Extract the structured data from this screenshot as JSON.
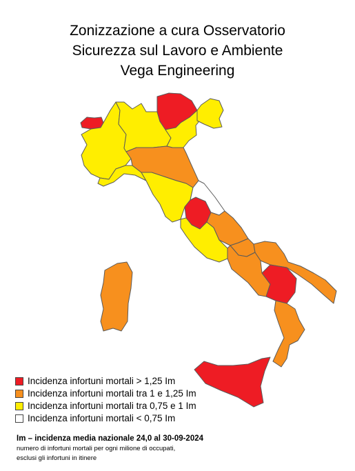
{
  "title": {
    "line1": "Zonizzazione a cura Osservatorio",
    "line2": "Sicurezza sul Lavoro e Ambiente",
    "line3": "Vega Engineering"
  },
  "colors": {
    "red": "#ee1c24",
    "orange": "#f7901e",
    "yellow": "#ffee00",
    "white": "#ffffff"
  },
  "regions": [
    {
      "name": "Valle d'Aosta",
      "zone": "red"
    },
    {
      "name": "Piemonte",
      "zone": "yellow"
    },
    {
      "name": "Lombardia",
      "zone": "yellow"
    },
    {
      "name": "Trentino-Alto Adige",
      "zone": "red"
    },
    {
      "name": "Veneto",
      "zone": "yellow"
    },
    {
      "name": "Friuli-Venezia Giulia",
      "zone": "yellow"
    },
    {
      "name": "Liguria",
      "zone": "yellow"
    },
    {
      "name": "Emilia-Romagna",
      "zone": "orange"
    },
    {
      "name": "Toscana",
      "zone": "yellow"
    },
    {
      "name": "Umbria",
      "zone": "red"
    },
    {
      "name": "Marche",
      "zone": "white"
    },
    {
      "name": "Lazio",
      "zone": "yellow"
    },
    {
      "name": "Abruzzo",
      "zone": "orange"
    },
    {
      "name": "Molise",
      "zone": "orange"
    },
    {
      "name": "Campania",
      "zone": "orange"
    },
    {
      "name": "Puglia",
      "zone": "orange"
    },
    {
      "name": "Basilicata",
      "zone": "red"
    },
    {
      "name": "Calabria",
      "zone": "orange"
    },
    {
      "name": "Sicilia",
      "zone": "red"
    },
    {
      "name": "Sardegna",
      "zone": "orange"
    }
  ],
  "legend": [
    {
      "label": "Incidenza infortuni mortali > 1,25 Im",
      "zone": "red"
    },
    {
      "label": "Incidenza infortuni mortali tra 1 e 1,25 Im",
      "zone": "orange"
    },
    {
      "label": "Incidenza infortuni mortali tra 0,75 e 1 Im",
      "zone": "yellow"
    },
    {
      "label": "Incidenza infortuni mortali < 0,75 Im",
      "zone": "white"
    }
  ],
  "footnote": {
    "main": "Im – incidenza media nazionale 24,0 al 30-09-2024",
    "sub1": "numero di infortuni mortali per ogni milione di occupati,",
    "sub2": "esclusi gli infortuni in itinere"
  }
}
